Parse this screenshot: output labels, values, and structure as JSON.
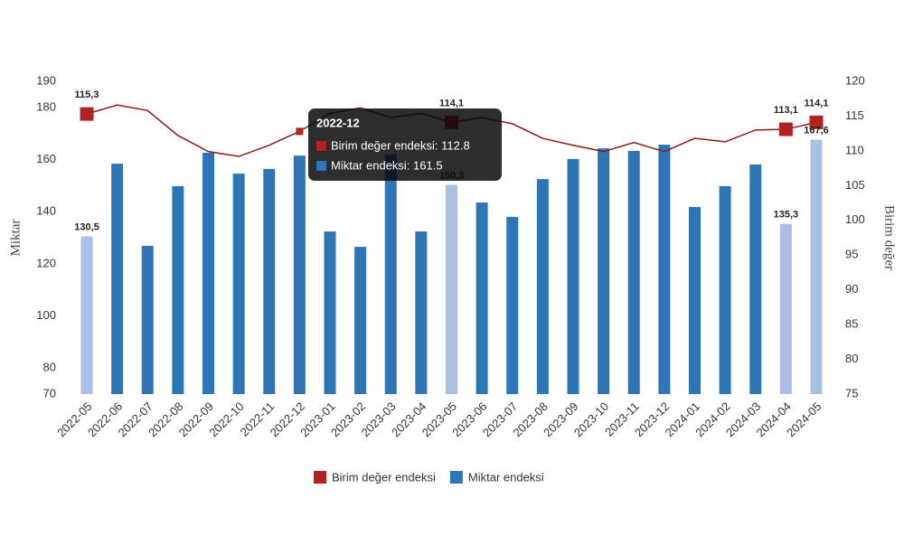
{
  "chart_data": {
    "type": "bar",
    "categories": [
      "2022-05",
      "2022-06",
      "2022-07",
      "2022-08",
      "2022-09",
      "2022-10",
      "2022-11",
      "2022-12",
      "2023-01",
      "2023-02",
      "2023-03",
      "2023-04",
      "2023-05",
      "2023-06",
      "2023-07",
      "2023-08",
      "2023-09",
      "2023-10",
      "2023-11",
      "2023-12",
      "2024-01",
      "2024-02",
      "2024-03",
      "2024-04",
      "2024-05"
    ],
    "y_label": "Miktar",
    "y2_label": "Birim değer",
    "ylim": [
      70,
      190
    ],
    "yticks": [
      70,
      80,
      100,
      120,
      140,
      160,
      180,
      190
    ],
    "y2lim": [
      75,
      120
    ],
    "y2ticks": [
      75,
      80,
      85,
      90,
      95,
      100,
      105,
      110,
      115,
      120
    ],
    "grid": false,
    "legend": "bottom",
    "series": [
      {
        "name": "Birim değer endeksi",
        "type": "line",
        "axis": "y2",
        "color": "#8b1a1a",
        "marker_color": "#b22222",
        "values": [
          115.3,
          116.6,
          115.8,
          112.2,
          109.9,
          109.2,
          110.8,
          112.8,
          115.4,
          116.2,
          114.8,
          115.4,
          114.1,
          114.8,
          113.9,
          111.8,
          110.8,
          109.9,
          111.2,
          109.9,
          111.8,
          111.3,
          113.0,
          113.1,
          114.1
        ],
        "value_labels": [
          "115,3",
          null,
          null,
          null,
          null,
          null,
          null,
          null,
          null,
          null,
          null,
          null,
          "114,1",
          null,
          null,
          null,
          null,
          null,
          null,
          null,
          null,
          null,
          null,
          "113,1",
          "114,1"
        ]
      },
      {
        "name": "Miktar endeksi",
        "type": "bar",
        "color": "#2e75b6",
        "colors": [
          "#a9bfe4",
          "#2e75b6",
          "#2e75b6",
          "#2e75b6",
          "#2e75b6",
          "#2e75b6",
          "#2e75b6",
          "#2e75b6",
          "#2e75b6",
          "#2e75b6",
          "#2e75b6",
          "#2e75b6",
          "#a9bfe4",
          "#2e75b6",
          "#2e75b6",
          "#2e75b6",
          "#2e75b6",
          "#2e75b6",
          "#2e75b6",
          "#2e75b6",
          "#2e75b6",
          "#2e75b6",
          "#2e75b6",
          "#a9bfe4",
          "#a9bfe4"
        ],
        "values": [
          130.5,
          158.4,
          126.9,
          149.8,
          162.6,
          154.6,
          156.4,
          161.5,
          132.4,
          126.5,
          162,
          132.4,
          150.3,
          143.5,
          138,
          152.5,
          160.2,
          164.3,
          163.3,
          165.7,
          141.8,
          149.8,
          158.1,
          135.3,
          167.6
        ],
        "value_labels": [
          "130,5",
          null,
          null,
          null,
          null,
          null,
          null,
          null,
          null,
          null,
          null,
          null,
          "150,3",
          null,
          null,
          null,
          null,
          null,
          null,
          null,
          null,
          null,
          null,
          "135,3",
          "167,6"
        ]
      }
    ],
    "tooltip": {
      "title": "2022-12",
      "items": [
        "Birim değer endeksi: 112.8",
        "Miktar endeksi: 161.5"
      ]
    }
  }
}
